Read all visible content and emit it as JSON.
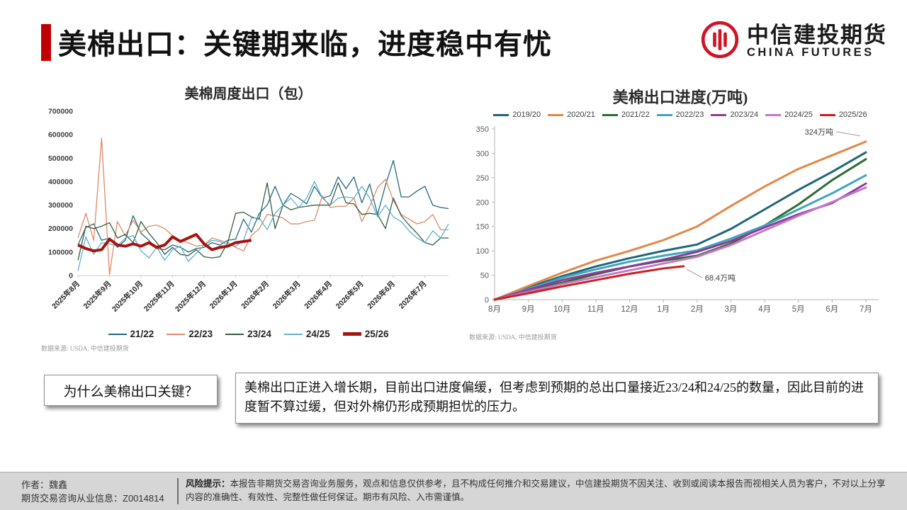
{
  "header": {
    "title": "美棉出口：关键期来临，进度稳中有忧",
    "accent_color": "#c00000",
    "logo": {
      "cn": "中信建投期货",
      "en": "CHINA FUTURES",
      "brand_color": "#cf1427"
    }
  },
  "chart_data": [
    {
      "type": "line",
      "title": "美棉周度出口（包）",
      "xlabel": "",
      "ylabel": "",
      "ylim": [
        0,
        700000
      ],
      "ytick_step": 100000,
      "x_tick_labels": [
        "2025年8月",
        "2025年9月",
        "2025年10月",
        "2025年11月",
        "2025年12月",
        "2026年1月",
        "2026年2月",
        "2026年3月",
        "2026年4月",
        "2026年5月",
        "2026年6月",
        "2026年7月"
      ],
      "points_per_month": 4,
      "grid": false,
      "legend_position": "bottom",
      "source": "数据来源: USDA, 中信建投期货",
      "series": [
        {
          "name": "21/22",
          "color": "#21687d",
          "width": 1.3,
          "values": [
            130000,
            205000,
            220000,
            150000,
            160000,
            120000,
            150000,
            255000,
            180000,
            150000,
            115000,
            110000,
            130000,
            120000,
            100000,
            115000,
            120000,
            140000,
            130000,
            150000,
            155000,
            240000,
            185000,
            265000,
            300000,
            380000,
            300000,
            350000,
            330000,
            305000,
            380000,
            330000,
            340000,
            420000,
            370000,
            420000,
            310000,
            390000,
            260000,
            385000,
            490000,
            335000,
            335000,
            360000,
            380000,
            300000,
            290000,
            285000
          ]
        },
        {
          "name": "22/23",
          "color": "#dd8a62",
          "width": 1.3,
          "values": [
            160000,
            265000,
            150000,
            585000,
            5000,
            230000,
            170000,
            235000,
            185000,
            210000,
            215000,
            200000,
            170000,
            150000,
            140000,
            125000,
            130000,
            160000,
            150000,
            140000,
            120000,
            105000,
            170000,
            200000,
            260000,
            255000,
            245000,
            220000,
            220000,
            230000,
            235000,
            340000,
            290000,
            295000,
            295000,
            330000,
            230000,
            295000,
            375000,
            410000,
            320000,
            260000,
            240000,
            220000,
            230000,
            260000,
            195000,
            195000
          ]
        },
        {
          "name": "23/24",
          "color": "#355e40",
          "width": 1.3,
          "values": [
            65000,
            210000,
            200000,
            210000,
            225000,
            160000,
            175000,
            140000,
            230000,
            180000,
            140000,
            90000,
            120000,
            90000,
            85000,
            110000,
            80000,
            75000,
            80000,
            140000,
            265000,
            270000,
            250000,
            240000,
            395000,
            200000,
            300000,
            280000,
            290000,
            295000,
            300000,
            300000,
            300000,
            395000,
            310000,
            305000,
            260000,
            265000,
            260000,
            200000,
            330000,
            255000,
            215000,
            180000,
            140000,
            130000,
            160000,
            160000
          ]
        },
        {
          "name": "24/25",
          "color": "#5fb0cf",
          "width": 1.3,
          "values": [
            20000,
            165000,
            90000,
            140000,
            135000,
            125000,
            160000,
            170000,
            105000,
            75000,
            120000,
            65000,
            110000,
            125000,
            60000,
            95000,
            130000,
            150000,
            145000,
            130000,
            125000,
            150000,
            245000,
            245000,
            195000,
            265000,
            300000,
            330000,
            290000,
            330000,
            400000,
            330000,
            300000,
            330000,
            335000,
            330000,
            380000,
            330000,
            250000,
            300000,
            250000,
            230000,
            190000,
            160000,
            140000,
            190000,
            160000,
            220000
          ]
        },
        {
          "name": "25/26",
          "color": "#a6140f",
          "width": 4,
          "values": [
            130000,
            115000,
            105000,
            110000,
            155000,
            130000,
            125000,
            135000,
            125000,
            140000,
            120000,
            130000,
            165000,
            145000,
            160000,
            175000,
            135000,
            110000,
            120000,
            125000,
            140000,
            145000,
            150000
          ]
        }
      ]
    },
    {
      "type": "line",
      "title": "美棉出口进度(万吨)",
      "xlabel": "",
      "ylabel": "",
      "ylim": [
        0,
        350
      ],
      "ytick_step": 50,
      "x_tick_labels": [
        "8月",
        "9月",
        "10月",
        "11月",
        "12月",
        "1月",
        "2月",
        "3月",
        "4月",
        "5月",
        "6月",
        "7月"
      ],
      "grid": false,
      "legend_position": "top",
      "source": "数据来源: USDA, 中信建投期货",
      "series": [
        {
          "name": "2019/20",
          "color": "#1f6678",
          "width": 3,
          "values": [
            0,
            25,
            48,
            68,
            85,
            100,
            113,
            145,
            185,
            225,
            262,
            302
          ]
        },
        {
          "name": "2020/21",
          "color": "#e08848",
          "width": 3,
          "values": [
            0,
            28,
            55,
            80,
            100,
            122,
            150,
            192,
            232,
            268,
            296,
            324
          ]
        },
        {
          "name": "2021/22",
          "color": "#2f6b33",
          "width": 3,
          "values": [
            0,
            18,
            35,
            52,
            68,
            80,
            90,
            115,
            152,
            195,
            245,
            288
          ]
        },
        {
          "name": "2022/23",
          "color": "#3fa6bd",
          "width": 3,
          "values": [
            0,
            22,
            45,
            62,
            78,
            90,
            101,
            125,
            152,
            185,
            218,
            255
          ]
        },
        {
          "name": "2023/24",
          "color": "#903a96",
          "width": 3,
          "values": [
            0,
            20,
            40,
            55,
            68,
            82,
            98,
            120,
            148,
            175,
            198,
            238
          ]
        },
        {
          "name": "2024/25",
          "color": "#c678c6",
          "width": 3,
          "values": [
            0,
            16,
            32,
            46,
            60,
            74,
            88,
            112,
            142,
            172,
            200,
            230
          ]
        },
        {
          "name": "2025/26",
          "color": "#cc1f1f",
          "width": 3,
          "x": [
            0,
            1,
            2,
            3,
            4,
            5,
            5.6
          ],
          "values": [
            0,
            13,
            27,
            40,
            53,
            64,
            68.4
          ]
        }
      ],
      "annotations": [
        {
          "text": "324万吨",
          "series": "2020/21"
        },
        {
          "text": "68.4万吨",
          "series": "2025/26"
        }
      ]
    }
  ],
  "qa": {
    "question": "为什么美棉出口关键？",
    "answer": "美棉出口正进入增长期，目前出口进度偏缓，但考虑到预期的总出口量接近23/24和24/25的数量，因此目前的进度暂不算过缓，但对外棉仍形成预期担忧的压力。"
  },
  "footer": {
    "author_line1": "作者：魏鑫",
    "author_line2": "期货交易咨询从业信息：Z0014814",
    "risk_label": "风险提示：",
    "risk_text": "本报告非期货交易咨询业务服务，观点和信息仅供参考，且不构成任何推介和交易建议，中信建投期货不因关注、收到或阅读本报告而视相关人员为客户，不对以上分享内容的准确性、有效性、完整性做任何保证。期市有风险、入市需谨慎。"
  }
}
